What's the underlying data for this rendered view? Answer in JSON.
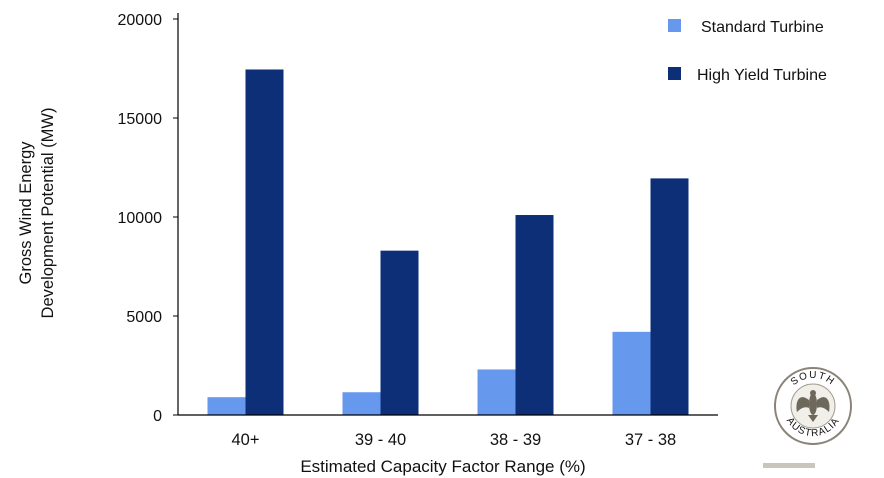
{
  "chart_data": {
    "type": "bar",
    "categories": [
      "40+",
      "39 - 40",
      "38 - 39",
      "37 - 38"
    ],
    "series": [
      {
        "name": "Standard Turbine",
        "values": [
          900,
          1150,
          2300,
          4200
        ],
        "color": "#6699ee"
      },
      {
        "name": "High Yield Turbine",
        "values": [
          17450,
          8300,
          10100,
          11950
        ],
        "color": "#0d2f78"
      }
    ],
    "xlabel": "Estimated Capacity Factor Range (%)",
    "ylabel_lines": [
      "Gross Wind Energy",
      "Development Potential (MW)"
    ],
    "ylim": [
      0,
      20000
    ],
    "yticks": [
      0,
      5000,
      10000,
      15000,
      20000
    ],
    "ytick_labels": [
      "0",
      "5000",
      "10000",
      "15000",
      "20000"
    ],
    "grid": false,
    "legend_position": "top-right"
  },
  "logo": {
    "name": "south-australia-seal",
    "text_top": "SOUTH",
    "text_bottom": "AUSTRALIA"
  }
}
